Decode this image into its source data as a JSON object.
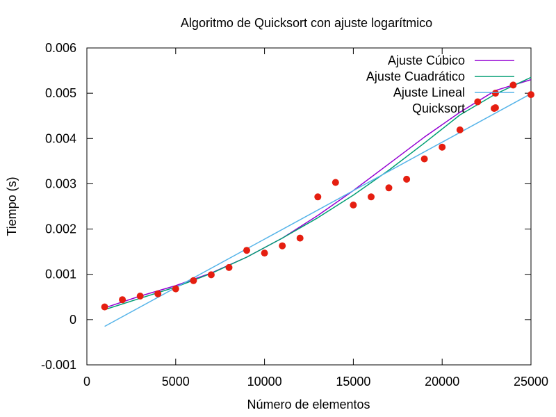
{
  "chart_data": {
    "type": "line",
    "title": "Algoritmo de Quicksort con ajuste logarítmico",
    "xlabel": "Número de elementos",
    "ylabel": "Tiempo (s)",
    "xlim": [
      0,
      25000
    ],
    "ylim": [
      -0.001,
      0.006
    ],
    "x_ticks": [
      0,
      5000,
      10000,
      15000,
      20000,
      25000
    ],
    "x_tick_labels": [
      "0",
      "5000",
      "10000",
      "15000",
      "20000",
      "25000"
    ],
    "y_ticks": [
      -0.001,
      0,
      0.001,
      0.002,
      0.003,
      0.004,
      0.005,
      0.006
    ],
    "y_tick_labels": [
      "-0.001",
      "0",
      "0.001",
      "0.002",
      "0.003",
      "0.004",
      "0.005",
      "0.006"
    ],
    "grid": false,
    "legend_position": "top-right",
    "series": [
      {
        "name": "Ajuste Cúbico",
        "kind": "line",
        "color": "#9400d3",
        "x": [
          1000,
          3000,
          5000,
          7000,
          9000,
          11000,
          13000,
          15000,
          17000,
          19000,
          21000,
          23000,
          25000
        ],
        "values": [
          0.00026,
          0.00052,
          0.00075,
          0.00103,
          0.00138,
          0.0018,
          0.0023,
          0.00285,
          0.00344,
          0.00403,
          0.00458,
          0.00506,
          0.0053
        ]
      },
      {
        "name": "Ajuste Cuadrático",
        "kind": "line",
        "color": "#009e73",
        "x": [
          1000,
          3000,
          5000,
          7000,
          9000,
          11000,
          13000,
          15000,
          17000,
          19000,
          21000,
          23000,
          25000
        ],
        "values": [
          0.00022,
          0.00047,
          0.00072,
          0.00102,
          0.00138,
          0.0018,
          0.00225,
          0.00275,
          0.0033,
          0.0039,
          0.00452,
          0.00498,
          0.00535
        ]
      },
      {
        "name": "Ajuste Lineal",
        "kind": "line",
        "color": "#56b4e9",
        "x": [
          1000,
          25000
        ],
        "values": [
          -0.00015,
          0.00499
        ]
      },
      {
        "name": "Quicksort",
        "kind": "points",
        "color": "#e51e10",
        "x": [
          1000,
          2000,
          3000,
          4000,
          5000,
          6000,
          7000,
          8000,
          9000,
          10000,
          11000,
          12000,
          13000,
          14000,
          15000,
          16000,
          17000,
          18000,
          19000,
          20000,
          21000,
          22000,
          23000,
          23000,
          24000,
          25000
        ],
        "values": [
          0.00028,
          0.00044,
          0.00052,
          0.00057,
          0.00068,
          0.00086,
          0.00099,
          0.00115,
          0.00153,
          0.00147,
          0.00163,
          0.0018,
          0.00271,
          0.00303,
          0.00253,
          0.00271,
          0.00291,
          0.0031,
          0.00355,
          0.00381,
          0.00419,
          0.00481,
          0.005,
          0.00468,
          0.00518,
          0.00497
        ]
      }
    ]
  }
}
